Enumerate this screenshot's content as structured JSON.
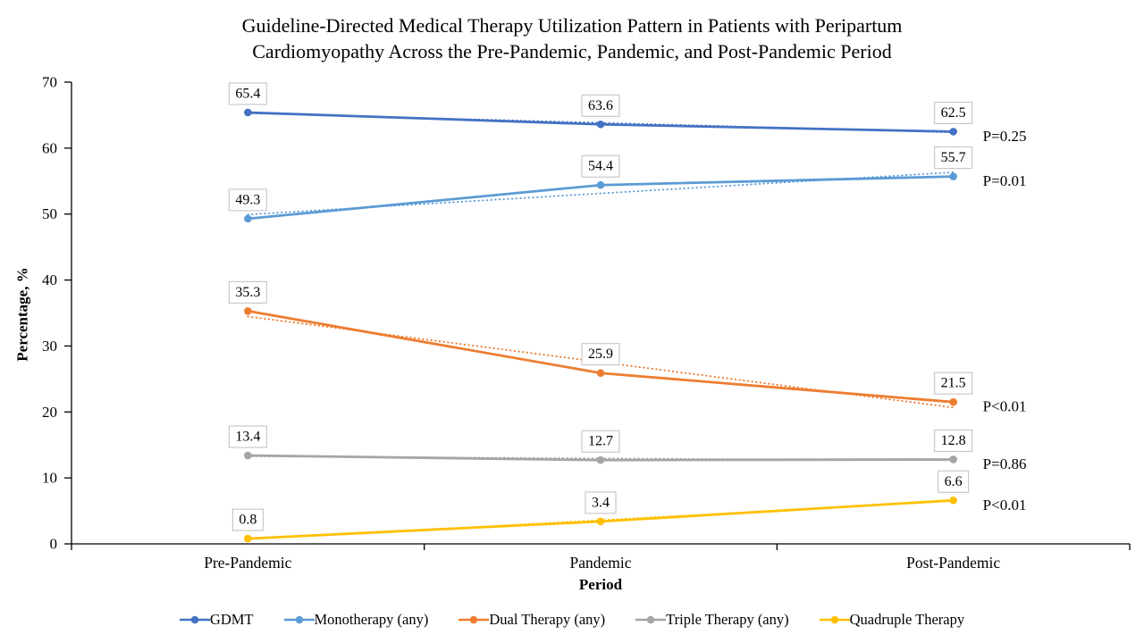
{
  "title": {
    "line1": "Guideline-Directed Medical Therapy Utilization Pattern in Patients with Peripartum",
    "line2": "Cardiomyopathy Across the Pre-Pandemic, Pandemic, and Post-Pandemic Period"
  },
  "chart_data": {
    "type": "line",
    "title": "Guideline-Directed Medical Therapy Utilization Pattern in Patients with Peripartum Cardiomyopathy Across the Pre-Pandemic, Pandemic, and Post-Pandemic Period",
    "xlabel": "Period",
    "ylabel": "Percentage, %",
    "ylim": [
      0,
      70
    ],
    "ytick_step": 10,
    "grid": false,
    "legend_position": "bottom",
    "data_labels": true,
    "categories": [
      "Pre-Pandemic",
      "Pandemic",
      "Post-Pandemic"
    ],
    "series": [
      {
        "name": "GDMT",
        "color": "#4472C4",
        "values": [
          65.4,
          63.6,
          62.5
        ],
        "p_value": "P=0.25",
        "trendline": true
      },
      {
        "name": "Monotherapy (any)",
        "color": "#5B9BD5",
        "values": [
          49.3,
          54.4,
          55.7
        ],
        "p_value": "P=0.01",
        "trendline": true
      },
      {
        "name": "Dual Therapy (any)",
        "color": "#ED7D31",
        "values": [
          35.3,
          25.9,
          21.5
        ],
        "p_value": "P<0.01",
        "trendline": true
      },
      {
        "name": "Triple Therapy (any)",
        "color": "#A5A5A5",
        "values": [
          13.4,
          12.7,
          12.8
        ],
        "p_value": "P=0.86",
        "trendline": true
      },
      {
        "name": "Quadruple Therapy",
        "color": "#FFC000",
        "values": [
          0.8,
          3.4,
          6.6
        ],
        "p_value": "P<0.01",
        "trendline": true
      }
    ],
    "axis_color": "#000000",
    "data_label_box": {
      "fill": "#FFFFFF",
      "border": "#BFBFBF"
    }
  }
}
